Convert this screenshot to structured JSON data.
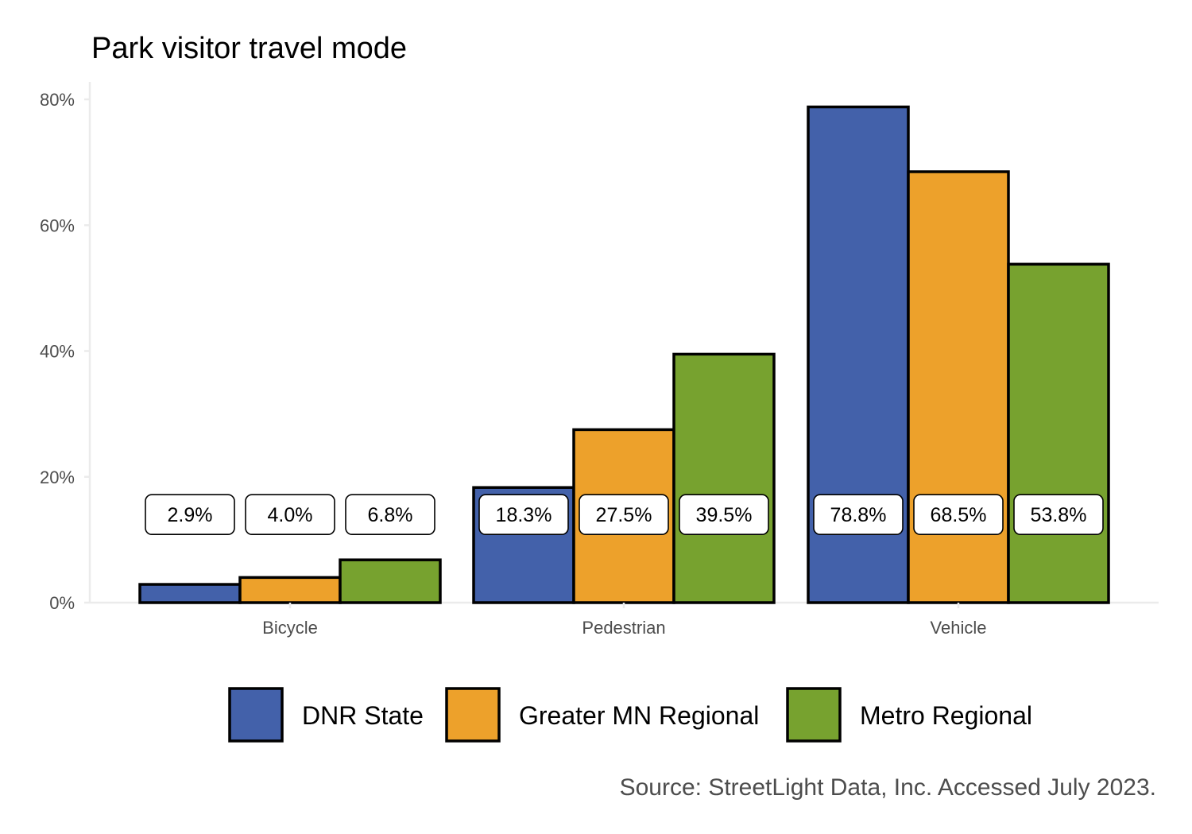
{
  "chart_data": {
    "type": "bar",
    "title": "Park visitor travel mode",
    "caption": "Source: StreetLight Data, Inc. Accessed July 2023.",
    "categories": [
      "Bicycle",
      "Pedestrian",
      "Vehicle"
    ],
    "series": [
      {
        "name": "DNR State",
        "color": "#4361aa",
        "values": [
          2.9,
          18.3,
          78.8
        ],
        "labels": [
          "2.9%",
          "18.3%",
          "78.8%"
        ]
      },
      {
        "name": "Greater MN Regional",
        "color": "#eda12b",
        "values": [
          4.0,
          27.5,
          68.5
        ],
        "labels": [
          "4.0%",
          "27.5%",
          "68.5%"
        ]
      },
      {
        "name": "Metro Regional",
        "color": "#77a22f",
        "values": [
          6.8,
          39.5,
          53.8
        ],
        "labels": [
          "6.8%",
          "39.5%",
          "53.8%"
        ]
      }
    ],
    "yticks": [
      0,
      20,
      40,
      60,
      80
    ],
    "ytick_labels": [
      "0%",
      "20%",
      "40%",
      "60%",
      "80%"
    ],
    "ylim": [
      0,
      80
    ],
    "label_position_value": 14,
    "grid": false,
    "legend_position": "bottom"
  }
}
